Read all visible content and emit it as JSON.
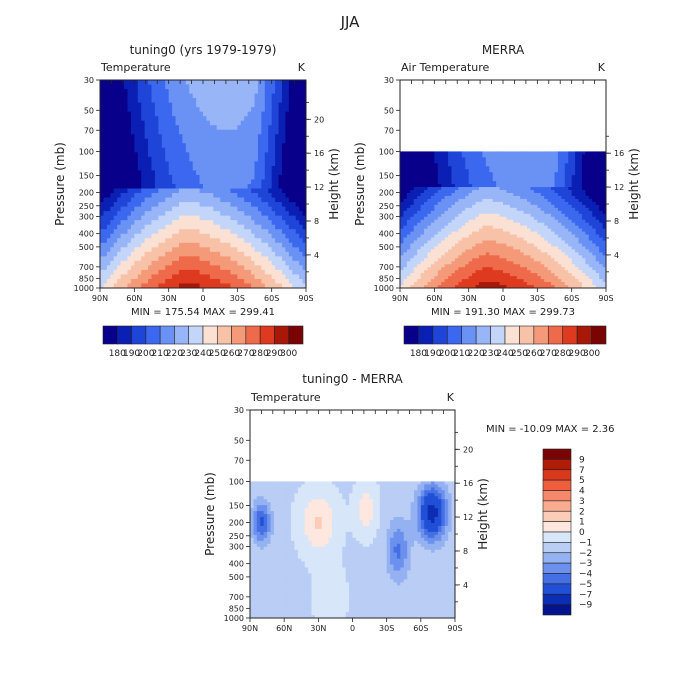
{
  "figure": {
    "title": "JJA"
  },
  "chart_data": [
    {
      "type": "heatmap",
      "title": "tuning0 (yrs 1979-1979)",
      "subtitle": "Temperature",
      "units": "K",
      "xlabel": "",
      "ylabel": "Pressure (mb)",
      "y2label": "Height (km)",
      "x_ticks": [
        "90N",
        "60N",
        "30N",
        "0",
        "30S",
        "60S",
        "90S"
      ],
      "y_ticks": [
        "30",
        "50",
        "70",
        "100",
        "150",
        "200",
        "250",
        "300",
        "400",
        "500",
        "700",
        "850",
        "1000"
      ],
      "y2_ticks": [
        "20",
        "16",
        "12",
        "8",
        "4"
      ],
      "stats": "MIN = 175.54   MAX = 299.41",
      "data_top_mb": 30,
      "colorbar_labels": [
        "180",
        "190",
        "200",
        "210",
        "220",
        "230",
        "240",
        "250",
        "260",
        "270",
        "280",
        "290",
        "300"
      ]
    },
    {
      "type": "heatmap",
      "title": "MERRA",
      "subtitle": "Air Temperature",
      "units": "K",
      "xlabel": "",
      "ylabel": "Pressure (mb)",
      "y2label": "Height (km)",
      "x_ticks": [
        "90N",
        "60N",
        "30N",
        "0",
        "30S",
        "60S",
        "90S"
      ],
      "y_ticks": [
        "30",
        "50",
        "70",
        "100",
        "150",
        "200",
        "250",
        "300",
        "400",
        "500",
        "700",
        "850",
        "1000"
      ],
      "y2_ticks": [
        "16",
        "12",
        "8",
        "4"
      ],
      "stats": "MIN = 191.30   MAX = 299.73",
      "data_top_mb": 100,
      "colorbar_labels": [
        "180",
        "190",
        "200",
        "210",
        "220",
        "230",
        "240",
        "250",
        "260",
        "270",
        "280",
        "290",
        "300"
      ]
    },
    {
      "type": "heatmap",
      "title": "tuning0 - MERRA",
      "subtitle": "Temperature",
      "units": "K",
      "xlabel": "",
      "ylabel": "Pressure (mb)",
      "y2label": "Height (km)",
      "x_ticks": [
        "90N",
        "60N",
        "30N",
        "0",
        "30S",
        "60S",
        "90S"
      ],
      "y_ticks": [
        "30",
        "50",
        "70",
        "100",
        "150",
        "200",
        "250",
        "300",
        "400",
        "500",
        "700",
        "850",
        "1000"
      ],
      "y2_ticks": [
        "20",
        "16",
        "12",
        "8",
        "4"
      ],
      "stats": "MIN = -10.09   MAX =   2.36",
      "data_top_mb": 100,
      "colorbar_labels": [
        "9",
        "7",
        "5",
        "4",
        "3",
        "2",
        "1",
        "0",
        "-1",
        "-2",
        "-3",
        "-4",
        "-5",
        "-7",
        "-9"
      ]
    }
  ],
  "colors": {
    "abs_scale": [
      "#08008a",
      "#0a1fb3",
      "#1f45d8",
      "#3b68ef",
      "#6a92f5",
      "#98b5f7",
      "#c3d6fa",
      "#fbe1d4",
      "#f8c2a8",
      "#f59a79",
      "#ef6a4a",
      "#dd3a1f",
      "#a81808",
      "#7a0303"
    ],
    "diff_scale": [
      "#7a0303",
      "#b01c08",
      "#d8381b",
      "#ef5d3c",
      "#f5886a",
      "#f8ab91",
      "#fbcdb9",
      "#fde7de",
      "#d7e6f8",
      "#b9cdf5",
      "#94b1f1",
      "#6b90ed",
      "#4470e4",
      "#214fd6",
      "#0b2db3",
      "#04148c"
    ]
  }
}
